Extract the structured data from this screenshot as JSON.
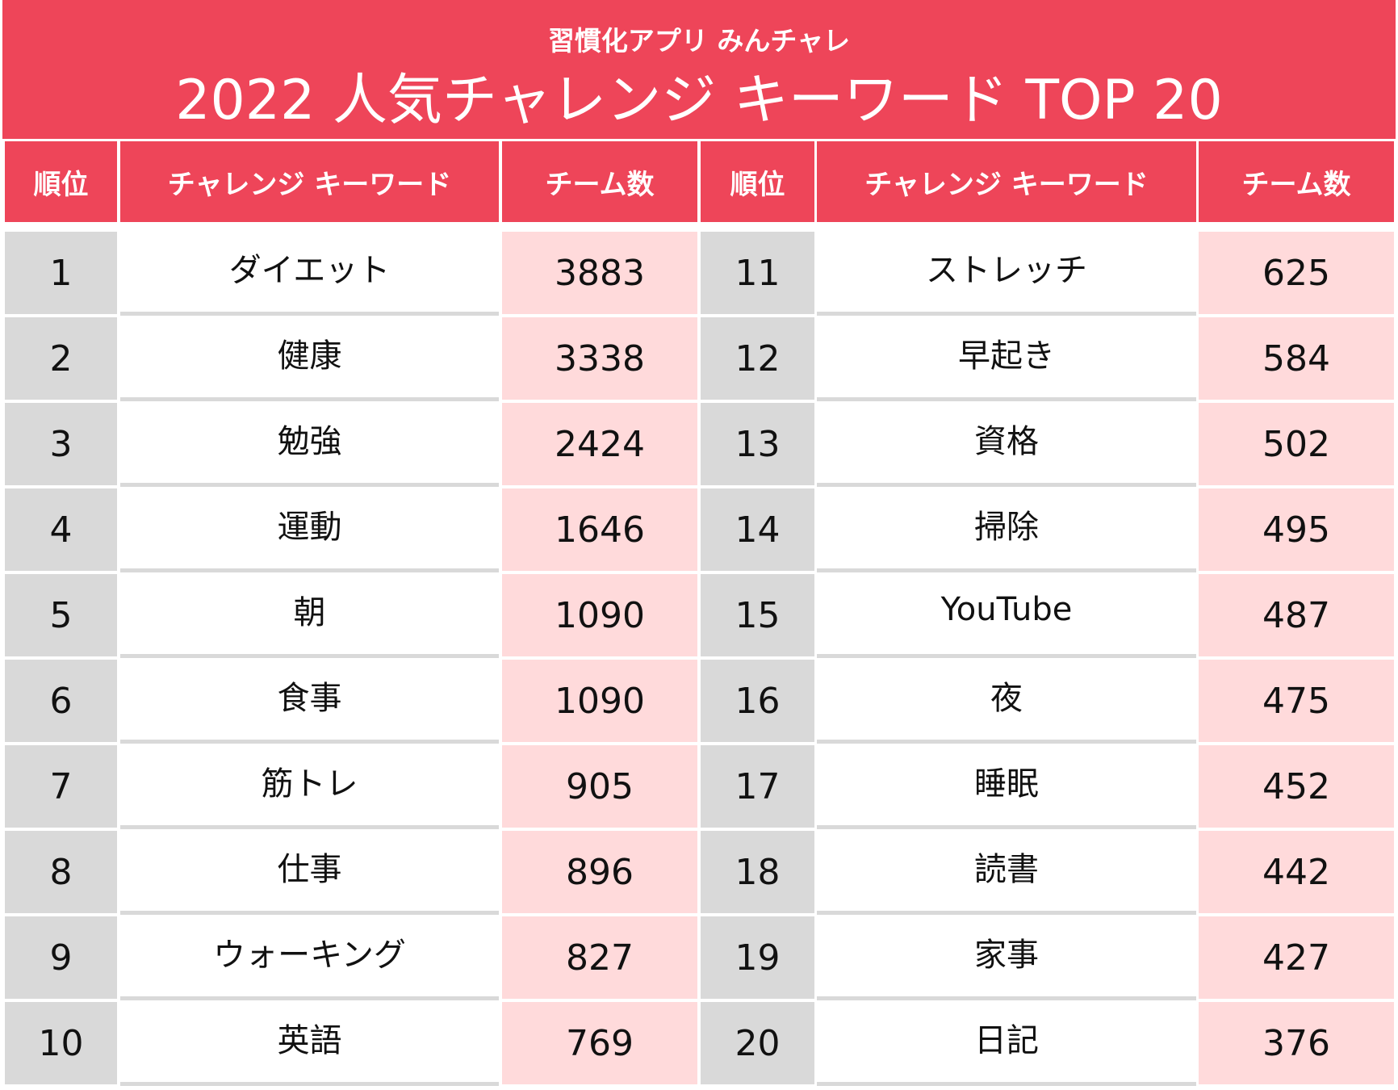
{
  "header": {
    "subtitle": "習慣化アプリ みんチャレ",
    "title": "2022 人気チャレンジ キーワード TOP 20"
  },
  "columns": {
    "rank": "順位",
    "keyword": "チャレンジ キーワード",
    "teams": "チーム数"
  },
  "colors": {
    "accent": "#EE4559",
    "rank_bg": "#D9D9D9",
    "count_bg": "#FFDADB"
  },
  "rows": [
    {
      "rank": "1",
      "keyword": "ダイエット",
      "teams": "3883"
    },
    {
      "rank": "2",
      "keyword": "健康",
      "teams": "3338"
    },
    {
      "rank": "3",
      "keyword": "勉強",
      "teams": "2424"
    },
    {
      "rank": "4",
      "keyword": "運動",
      "teams": "1646"
    },
    {
      "rank": "5",
      "keyword": "朝",
      "teams": "1090"
    },
    {
      "rank": "6",
      "keyword": "食事",
      "teams": "1090"
    },
    {
      "rank": "7",
      "keyword": "筋トレ",
      "teams": "905"
    },
    {
      "rank": "8",
      "keyword": "仕事",
      "teams": "896"
    },
    {
      "rank": "9",
      "keyword": "ウォーキング",
      "teams": "827"
    },
    {
      "rank": "10",
      "keyword": "英語",
      "teams": "769"
    },
    {
      "rank": "11",
      "keyword": "ストレッチ",
      "teams": "625"
    },
    {
      "rank": "12",
      "keyword": "早起き",
      "teams": "584"
    },
    {
      "rank": "13",
      "keyword": "資格",
      "teams": "502"
    },
    {
      "rank": "14",
      "keyword": "掃除",
      "teams": "495"
    },
    {
      "rank": "15",
      "keyword": "YouTube",
      "teams": "487"
    },
    {
      "rank": "16",
      "keyword": "夜",
      "teams": "475"
    },
    {
      "rank": "17",
      "keyword": "睡眠",
      "teams": "452"
    },
    {
      "rank": "18",
      "keyword": "読書",
      "teams": "442"
    },
    {
      "rank": "19",
      "keyword": "家事",
      "teams": "427"
    },
    {
      "rank": "20",
      "keyword": "日記",
      "teams": "376"
    }
  ]
}
